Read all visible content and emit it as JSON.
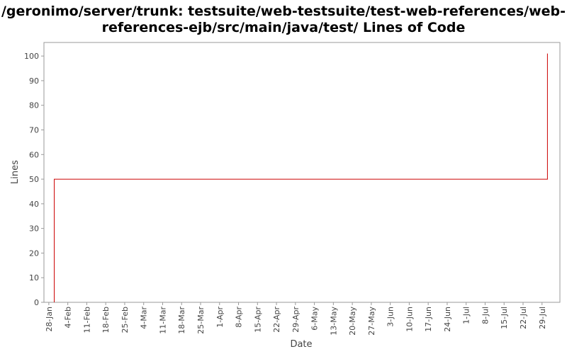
{
  "chart_data": {
    "type": "line",
    "title": [
      "/geronimo/server/trunk: testsuite/web-testsuite/test-web-references/web-",
      "references-ejb/src/main/java/test/ Lines of Code"
    ],
    "x_label": "Date",
    "y_label": "Lines",
    "xlim": [
      -1.8,
      188.6
    ],
    "xticks": [
      {
        "value": 0,
        "label": "28-Jan"
      },
      {
        "value": 7,
        "label": "4-Feb"
      },
      {
        "value": 14,
        "label": "11-Feb"
      },
      {
        "value": 21,
        "label": "18-Feb"
      },
      {
        "value": 28,
        "label": "25-Feb"
      },
      {
        "value": 35,
        "label": "4-Mar"
      },
      {
        "value": 42,
        "label": "11-Mar"
      },
      {
        "value": 49,
        "label": "18-Mar"
      },
      {
        "value": 56,
        "label": "25-Mar"
      },
      {
        "value": 63,
        "label": "1-Apr"
      },
      {
        "value": 70,
        "label": "8-Apr"
      },
      {
        "value": 77,
        "label": "15-Apr"
      },
      {
        "value": 84,
        "label": "22-Apr"
      },
      {
        "value": 91,
        "label": "29-Apr"
      },
      {
        "value": 98,
        "label": "6-May"
      },
      {
        "value": 105,
        "label": "13-May"
      },
      {
        "value": 112,
        "label": "20-May"
      },
      {
        "value": 119,
        "label": "27-May"
      },
      {
        "value": 126,
        "label": "3-Jun"
      },
      {
        "value": 133,
        "label": "10-Jun"
      },
      {
        "value": 140,
        "label": "17-Jun"
      },
      {
        "value": 147,
        "label": "24-Jun"
      },
      {
        "value": 154,
        "label": "1-Jul"
      },
      {
        "value": 161,
        "label": "8-Jul"
      },
      {
        "value": 168,
        "label": "15-Jul"
      },
      {
        "value": 175,
        "label": "22-Jul"
      },
      {
        "value": 182,
        "label": "29-Jul"
      }
    ],
    "ylim": [
      0,
      105.5
    ],
    "yticks": [
      0,
      10,
      20,
      30,
      40,
      50,
      60,
      70,
      80,
      90,
      100
    ],
    "x": [
      2,
      2,
      184,
      184
    ],
    "series": [
      {
        "name": "Lines",
        "color": "#cc0000",
        "values": [
          0,
          50,
          50,
          101
        ]
      }
    ]
  }
}
